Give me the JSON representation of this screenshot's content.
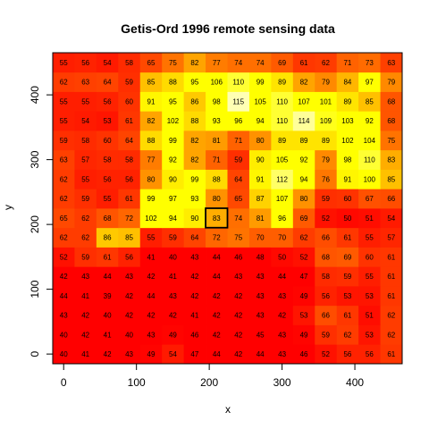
{
  "chart_data": {
    "type": "heatmap",
    "title": "Getis-Ord 1996 remote sensing data",
    "xlabel": "x",
    "ylabel": "y",
    "x": [
      0,
      30,
      60,
      90,
      120,
      150,
      180,
      210,
      240,
      270,
      300,
      330,
      360,
      390,
      420,
      450
    ],
    "y": [
      0,
      30,
      60,
      90,
      120,
      150,
      180,
      210,
      240,
      270,
      300,
      330,
      360,
      390,
      420,
      450
    ],
    "x_ticks": [
      0,
      100,
      200,
      300,
      400
    ],
    "y_ticks": [
      0,
      100,
      200,
      300,
      400
    ],
    "xlim": [
      -15,
      465
    ],
    "ylim": [
      -15,
      465
    ],
    "values": [
      [
        40,
        41,
        42,
        43,
        49,
        54,
        47,
        44,
        42,
        44,
        43,
        46,
        52,
        56,
        56,
        61
      ],
      [
        40,
        42,
        41,
        40,
        43,
        49,
        46,
        42,
        42,
        45,
        43,
        49,
        59,
        62,
        53,
        62
      ],
      [
        43,
        42,
        40,
        42,
        42,
        42,
        41,
        42,
        42,
        43,
        42,
        53,
        66,
        61,
        51,
        62
      ],
      [
        44,
        41,
        39,
        42,
        44,
        43,
        42,
        42,
        42,
        43,
        43,
        49,
        56,
        53,
        53,
        61
      ],
      [
        42,
        43,
        44,
        43,
        42,
        41,
        42,
        44,
        43,
        43,
        44,
        47,
        58,
        59,
        55,
        61
      ],
      [
        52,
        59,
        61,
        56,
        41,
        40,
        43,
        44,
        46,
        48,
        50,
        52,
        68,
        69,
        60,
        61
      ],
      [
        62,
        62,
        86,
        85,
        55,
        59,
        64,
        72,
        75,
        70,
        70,
        62,
        66,
        61,
        55,
        57
      ],
      [
        65,
        62,
        68,
        72,
        102,
        94,
        90,
        83,
        74,
        81,
        96,
        69,
        52,
        50,
        51,
        54
      ],
      [
        62,
        59,
        55,
        61,
        99,
        97,
        93,
        80,
        65,
        87,
        107,
        80,
        59,
        60,
        67,
        66
      ],
      [
        62,
        55,
        56,
        56,
        80,
        90,
        99,
        88,
        64,
        91,
        112,
        94,
        76,
        91,
        100,
        85
      ],
      [
        63,
        57,
        58,
        58,
        77,
        92,
        82,
        71,
        59,
        90,
        105,
        92,
        79,
        98,
        110,
        83
      ],
      [
        59,
        58,
        60,
        64,
        88,
        99,
        82,
        81,
        71,
        80,
        89,
        89,
        89,
        102,
        104,
        75
      ],
      [
        55,
        54,
        53,
        61,
        82,
        102,
        88,
        93,
        96,
        94,
        110,
        114,
        109,
        103,
        92,
        68
      ],
      [
        55,
        55,
        56,
        60,
        91,
        95,
        86,
        98,
        115,
        105,
        110,
        107,
        101,
        89,
        85,
        68
      ],
      [
        62,
        63,
        64,
        59,
        85,
        88,
        95,
        106,
        110,
        99,
        89,
        82,
        79,
        84,
        97,
        79
      ],
      [
        55,
        56,
        54,
        58,
        65,
        75,
        82,
        77,
        74,
        74,
        69,
        61,
        62,
        71,
        73,
        63
      ]
    ],
    "highlight_cell": {
      "x": 210,
      "y": 210,
      "value": 83
    },
    "colors": {
      "low": "#ff0000",
      "mid": "#ff8000",
      "high": "#ffff00",
      "top": "#ffffcc",
      "highlight_border": "#000000"
    },
    "grid": false,
    "legend": "none"
  }
}
